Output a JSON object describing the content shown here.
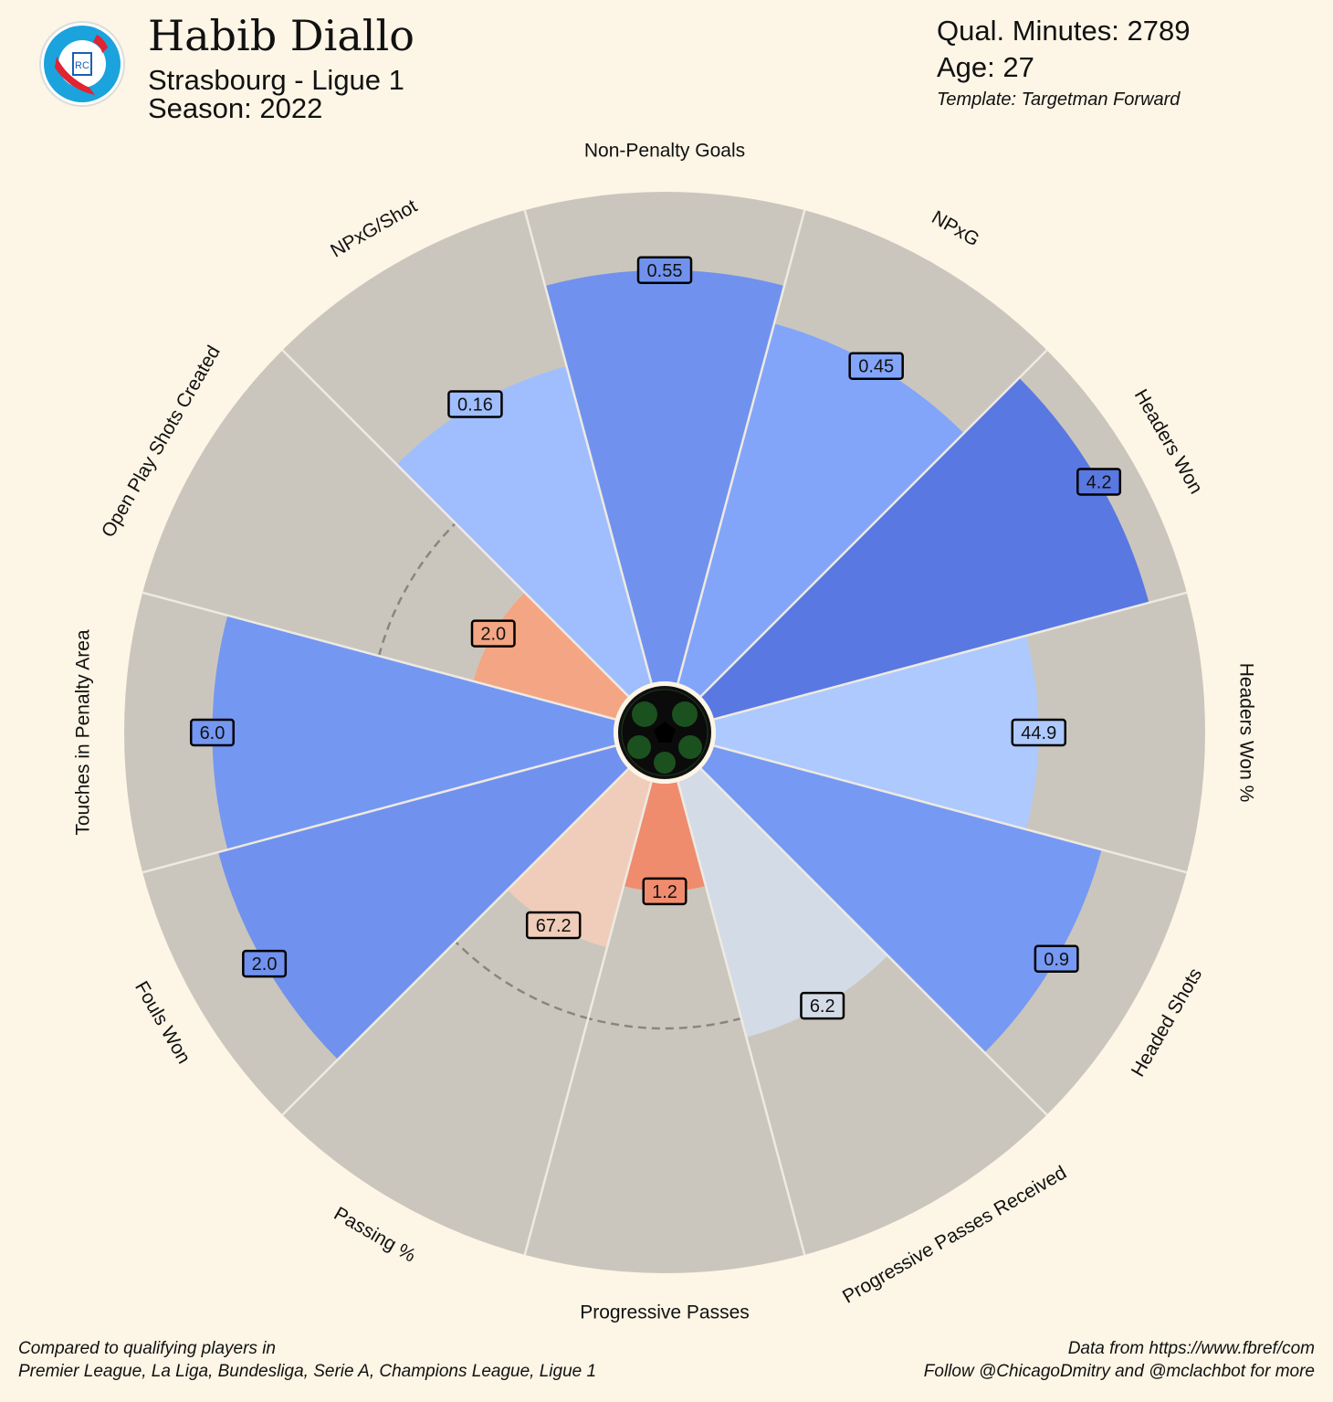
{
  "header": {
    "player_name": "Habib Diallo",
    "team_league": "Strasbourg - Ligue 1",
    "season": "Season: 2022",
    "minutes": "Qual. Minutes: 2789",
    "age": "Age: 27",
    "template": "Template: Targetman Forward",
    "logo_name": "strasbourg-crest-icon"
  },
  "footer": {
    "left_line1": "Compared to qualifying players in",
    "left_line2": "Premier League, La Liga, Bundesliga, Serie A, Champions League, Ligue 1",
    "right_line1": "Data from https://www.fbref/com",
    "right_line2": "Follow @ChicagoDmitry and @mclachbot for more"
  },
  "chart_data": {
    "type": "pizza",
    "note_scale": "percentile 0-100, dashed ring at 50",
    "median_ring": 50,
    "background_color": "#cbc6bd",
    "categories": [
      {
        "label": "Non-Penalty Goals",
        "value_label": "0.55",
        "percentile": 84,
        "color": "#7092ee"
      },
      {
        "label": "NPxG",
        "value_label": "0.45",
        "percentile": 76,
        "color": "#82a5fa"
      },
      {
        "label": "Headers Won",
        "value_label": "4.2",
        "percentile": 92,
        "color": "#5a78e1"
      },
      {
        "label": "Headers Won %",
        "value_label": "44.9",
        "percentile": 66,
        "color": "#adc9fd"
      },
      {
        "label": "Headed Shots",
        "value_label": "0.9",
        "percentile": 82,
        "color": "#7699f3"
      },
      {
        "label": "Progressive Passes Received",
        "value_label": "6.2",
        "percentile": 54,
        "color": "#d3dbe7"
      },
      {
        "label": "Progressive Passes",
        "value_label": "1.2",
        "percentile": 22,
        "color": "#f08c6e"
      },
      {
        "label": "Passing %",
        "value_label": "67.2",
        "percentile": 35,
        "color": "#f0cdba"
      },
      {
        "label": "Fouls Won",
        "value_label": "2.0",
        "percentile": 84,
        "color": "#7092ee"
      },
      {
        "label": "Touches in Penalty Area",
        "value_label": "6.0",
        "percentile": 82,
        "color": "#7497f2"
      },
      {
        "label": "Open Play Shots Created",
        "value_label": "2.0",
        "percentile": 30,
        "color": "#f4a584"
      },
      {
        "label": "NPxG/Shot",
        "value_label": "0.16",
        "percentile": 67,
        "color": "#a0befd"
      }
    ]
  }
}
